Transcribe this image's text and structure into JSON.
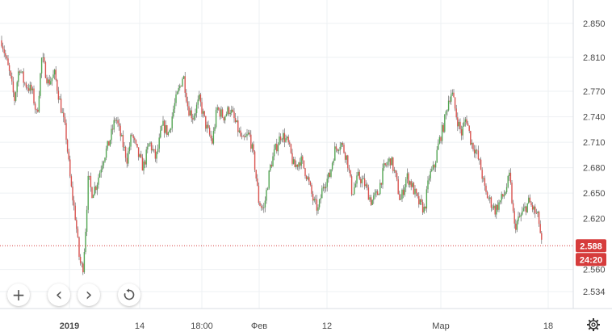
{
  "chart_data": {
    "type": "candlestick",
    "title": "",
    "xlabel": "",
    "ylabel": "",
    "ylim": [
      2.515,
      2.865
    ],
    "y_ticks": [
      "2.850",
      "2.810",
      "2.770",
      "2.740",
      "2.710",
      "2.680",
      "2.650",
      "2.620",
      "2.588",
      "2.560",
      "2.534"
    ],
    "x_ticks": [
      "2019",
      "14",
      "18:00",
      "Фев",
      "12",
      "Мар",
      "18"
    ],
    "x_ticks_bold": [
      "2019"
    ],
    "grid": true,
    "last_price": 2.588,
    "last_price_label": "2.588",
    "countdown": "24:20",
    "up_color": "#53a653",
    "down_color": "#d9534f",
    "price_line_color": "#d63c3c",
    "path": [
      [
        0,
        2.83
      ],
      [
        10,
        2.79
      ],
      [
        16,
        2.76
      ],
      [
        22,
        2.8
      ],
      [
        28,
        2.78
      ],
      [
        38,
        2.77
      ],
      [
        44,
        2.74
      ],
      [
        50,
        2.81
      ],
      [
        58,
        2.78
      ],
      [
        66,
        2.79
      ],
      [
        74,
        2.75
      ],
      [
        80,
        2.72
      ],
      [
        86,
        2.66
      ],
      [
        92,
        2.62
      ],
      [
        97,
        2.57
      ],
      [
        101,
        2.56
      ],
      [
        104,
        2.6
      ],
      [
        108,
        2.67
      ],
      [
        112,
        2.65
      ],
      [
        118,
        2.66
      ],
      [
        126,
        2.69
      ],
      [
        134,
        2.71
      ],
      [
        142,
        2.74
      ],
      [
        150,
        2.71
      ],
      [
        156,
        2.69
      ],
      [
        162,
        2.72
      ],
      [
        168,
        2.7
      ],
      [
        176,
        2.68
      ],
      [
        184,
        2.71
      ],
      [
        192,
        2.69
      ],
      [
        200,
        2.73
      ],
      [
        208,
        2.72
      ],
      [
        214,
        2.75
      ],
      [
        220,
        2.77
      ],
      [
        226,
        2.79
      ],
      [
        232,
        2.75
      ],
      [
        238,
        2.74
      ],
      [
        246,
        2.76
      ],
      [
        254,
        2.73
      ],
      [
        262,
        2.71
      ],
      [
        268,
        2.75
      ],
      [
        276,
        2.74
      ],
      [
        284,
        2.75
      ],
      [
        292,
        2.73
      ],
      [
        300,
        2.71
      ],
      [
        308,
        2.72
      ],
      [
        314,
        2.69
      ],
      [
        320,
        2.64
      ],
      [
        326,
        2.63
      ],
      [
        334,
        2.68
      ],
      [
        340,
        2.7
      ],
      [
        348,
        2.72
      ],
      [
        356,
        2.71
      ],
      [
        364,
        2.68
      ],
      [
        372,
        2.69
      ],
      [
        380,
        2.67
      ],
      [
        388,
        2.64
      ],
      [
        394,
        2.63
      ],
      [
        400,
        2.66
      ],
      [
        408,
        2.67
      ],
      [
        414,
        2.7
      ],
      [
        422,
        2.71
      ],
      [
        430,
        2.69
      ],
      [
        436,
        2.65
      ],
      [
        444,
        2.67
      ],
      [
        452,
        2.66
      ],
      [
        460,
        2.64
      ],
      [
        468,
        2.65
      ],
      [
        476,
        2.68
      ],
      [
        484,
        2.69
      ],
      [
        490,
        2.67
      ],
      [
        496,
        2.64
      ],
      [
        504,
        2.67
      ],
      [
        510,
        2.66
      ],
      [
        518,
        2.64
      ],
      [
        526,
        2.63
      ],
      [
        532,
        2.67
      ],
      [
        538,
        2.68
      ],
      [
        544,
        2.71
      ],
      [
        550,
        2.73
      ],
      [
        556,
        2.76
      ],
      [
        560,
        2.77
      ],
      [
        566,
        2.74
      ],
      [
        572,
        2.72
      ],
      [
        578,
        2.74
      ],
      [
        584,
        2.71
      ],
      [
        590,
        2.7
      ],
      [
        596,
        2.68
      ],
      [
        602,
        2.65
      ],
      [
        608,
        2.64
      ],
      [
        614,
        2.63
      ],
      [
        620,
        2.64
      ],
      [
        626,
        2.65
      ],
      [
        632,
        2.67
      ],
      [
        638,
        2.61
      ],
      [
        644,
        2.62
      ],
      [
        650,
        2.63
      ],
      [
        656,
        2.64
      ],
      [
        662,
        2.63
      ],
      [
        668,
        2.62
      ],
      [
        672,
        2.588
      ]
    ]
  },
  "controls": {
    "zoom_in": "+",
    "scroll_left": "‹",
    "scroll_right": "›"
  }
}
